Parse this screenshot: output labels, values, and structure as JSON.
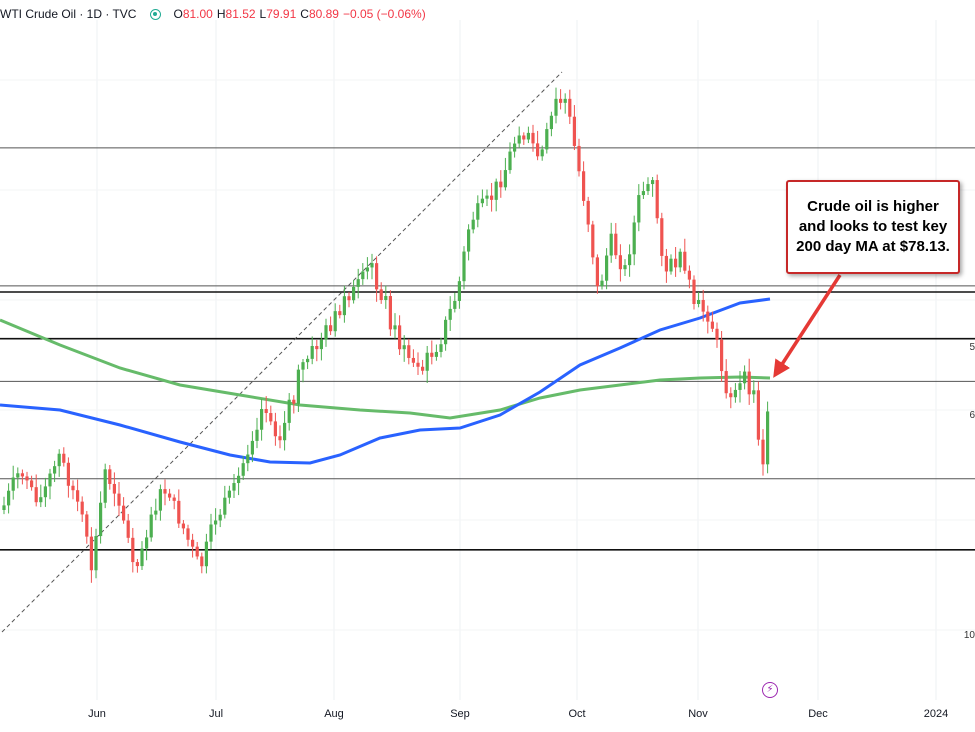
{
  "header": {
    "title": "WTI Crude Oil · 1D · TVC",
    "ohlc": [
      {
        "k": "O",
        "v": "81.00"
      },
      {
        "k": "H",
        "v": "81.52"
      },
      {
        "k": "L",
        "v": "79.91"
      },
      {
        "k": "C",
        "v": "80.89"
      },
      {
        "k": "",
        "v": "−0.05 (−0.06%)"
      }
    ]
  },
  "callout": "Crude oil is higher and looks to test key 200 day MA at $78.13.",
  "edge_labels": [
    "5",
    "6",
    "10"
  ],
  "logo_icon": "tradingview-replay-icon",
  "colors": {
    "up": "#4caf50",
    "down": "#ef5350",
    "ma100": "#2962ff",
    "ma200": "#66bb6a",
    "arrow": "#e53935"
  },
  "chart_data": {
    "type": "candlestick",
    "x_tick_labels": [
      "Jun",
      "Jul",
      "Aug",
      "Sep",
      "Oct",
      "Nov",
      "Dec",
      "2024"
    ],
    "horizontal_levels": [
      93.7,
      86.9,
      86.6,
      84.3,
      82.2,
      77.4,
      73.9
    ],
    "ylim": [
      66.5,
      100.0
    ],
    "ma_200_value": 78.13,
    "ohlc_last": {
      "open": 81.0,
      "high": 81.52,
      "low": 79.91,
      "close": 80.89,
      "change": -0.05,
      "change_pct": -0.06
    }
  }
}
